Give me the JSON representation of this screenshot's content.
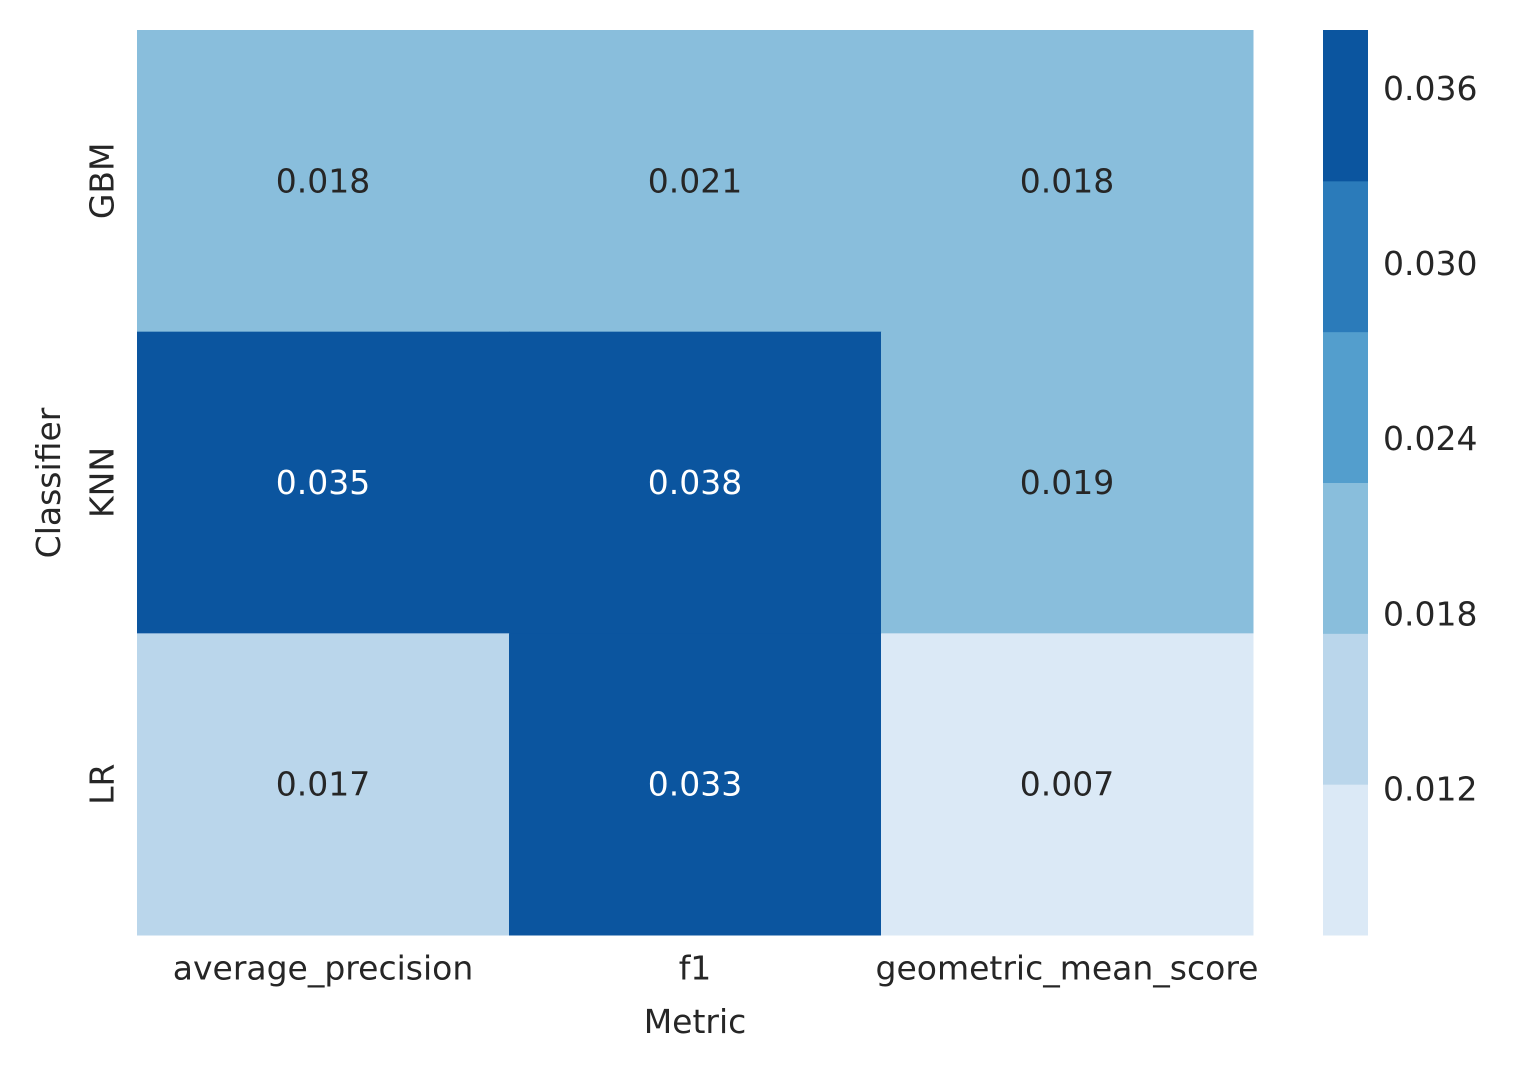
{
  "chart_data": {
    "type": "heatmap",
    "xlabel": "Metric",
    "ylabel": "Classifier",
    "x_categories": [
      "average_precision",
      "f1",
      "geometric_mean_score"
    ],
    "y_categories": [
      "GBM",
      "KNN",
      "LR"
    ],
    "values": [
      [
        0.018,
        0.021,
        0.018
      ],
      [
        0.035,
        0.038,
        0.019
      ],
      [
        0.017,
        0.033,
        0.007
      ]
    ],
    "value_labels": [
      [
        "0.018",
        "0.021",
        "0.018"
      ],
      [
        "0.035",
        "0.038",
        "0.019"
      ],
      [
        "0.017",
        "0.033",
        "0.007"
      ]
    ],
    "colorbar": {
      "range": [
        0.007,
        0.038
      ],
      "ticks": [
        0.036,
        0.03,
        0.024,
        0.018,
        0.012
      ],
      "tick_labels": [
        "0.036",
        "0.030",
        "0.024",
        "0.018",
        "0.012"
      ],
      "bins": 6,
      "colors": [
        "#dbe9f6",
        "#bad6eb",
        "#89bedc",
        "#539ecd",
        "#2b7bba",
        "#0b559f"
      ]
    },
    "text_colors": {
      "dark": "#262626",
      "light": "#ffffff"
    },
    "grid": false
  }
}
